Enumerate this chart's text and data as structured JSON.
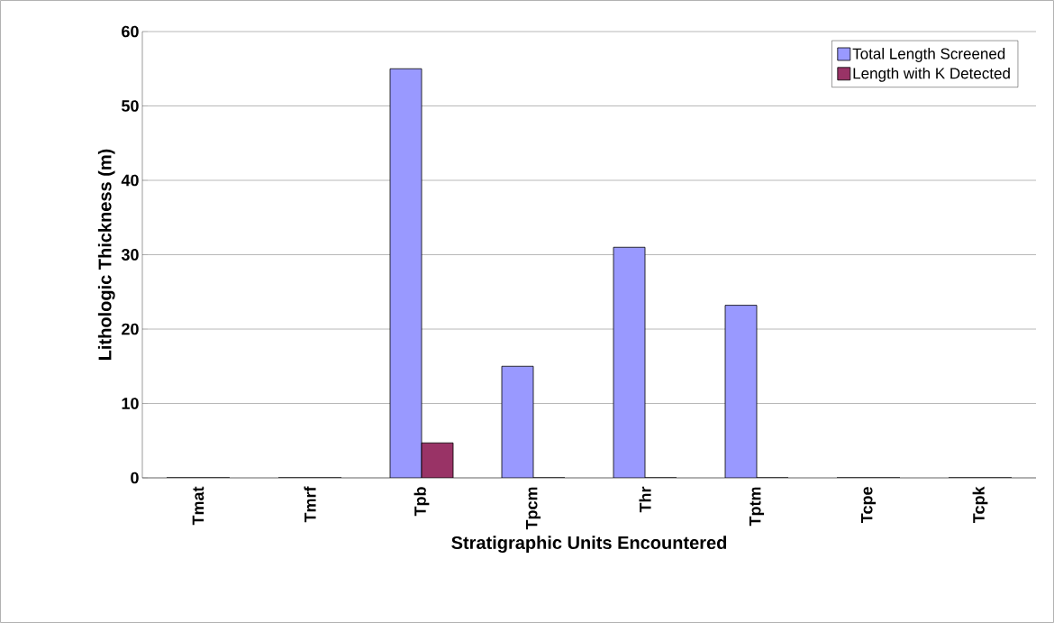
{
  "chart_data": {
    "type": "bar",
    "xlabel": "Stratigraphic Units Encountered",
    "ylabel": "Lithologic Thickness (m)",
    "categories": [
      "Tmat",
      "Tmrf",
      "Tpb",
      "Tpcm",
      "Thr",
      "Tptm",
      "Tcpe",
      "Tcpk"
    ],
    "series": [
      {
        "name": "Total Length Screened",
        "color": "#9999ff",
        "values": [
          0,
          0,
          55,
          15,
          31,
          23.2,
          0,
          0
        ]
      },
      {
        "name": "Length with K Detected",
        "color": "#993366",
        "values": [
          0,
          0,
          4.7,
          0,
          0,
          0,
          0,
          0
        ]
      }
    ],
    "ylim": [
      0,
      60
    ],
    "yticks": [
      0,
      10,
      20,
      30,
      40,
      50,
      60
    ],
    "grid": "y",
    "legend": "top right"
  }
}
